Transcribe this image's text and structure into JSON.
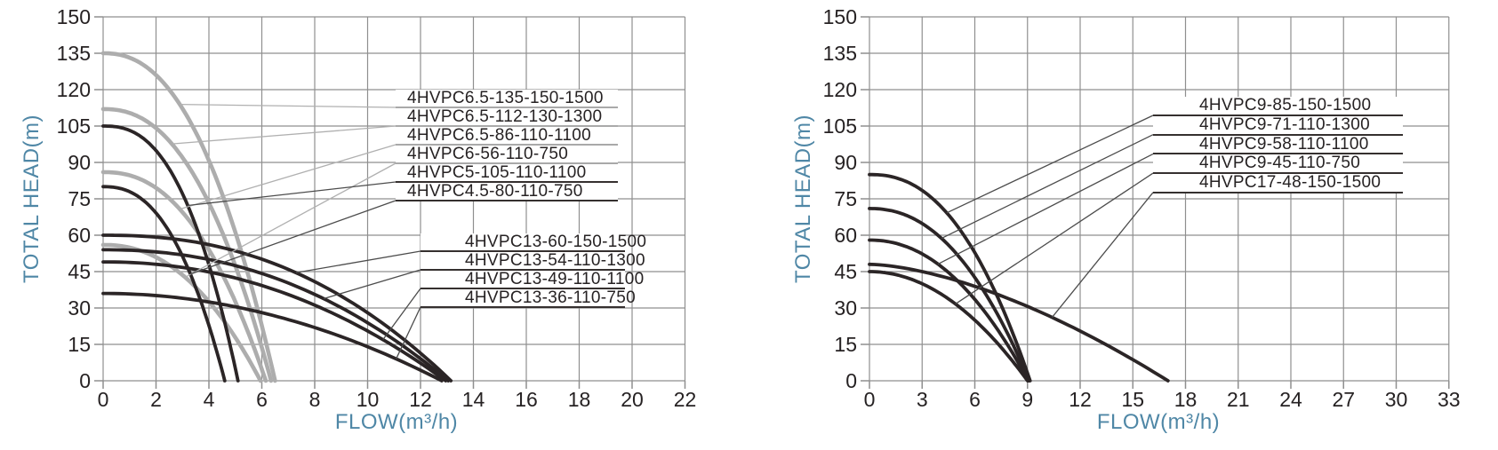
{
  "page": {
    "background": "#ffffff"
  },
  "colors": {
    "grid": "#8f8f8f",
    "tick_text": "#262223",
    "axis_title": "#4f87a6",
    "curve_gray": "#adadad",
    "curve_dark": "#2b2526",
    "leader_gray": "#b0b0b0",
    "leader_dark": "#4c4c4c",
    "underline_gray": "#a9a9a9",
    "underline_dark": "#35302f",
    "label_text": "#262223",
    "label_bg": "#ffffff"
  },
  "chart_data": [
    {
      "type": "line",
      "title": "",
      "xlabel": "FLOW(m³/h)",
      "ylabel": "TOTAL HEAD(m)",
      "xlim": [
        0,
        22
      ],
      "ylim": [
        0,
        150
      ],
      "grid": "on",
      "legend": "inline-leader-labels",
      "x_ticks": [
        0,
        2,
        4,
        6,
        8,
        10,
        12,
        14,
        16,
        18,
        20,
        22
      ],
      "y_ticks": [
        0,
        15,
        30,
        45,
        60,
        75,
        90,
        105,
        120,
        135,
        150
      ],
      "series": [
        {
          "label": "4HVPC6.5-135-150-1500",
          "color": "gray",
          "shutoff_head_m": 135,
          "max_flow_m3h": 6.5,
          "curve_exp": 2.3
        },
        {
          "label": "4HVPC6.5-112-130-1300",
          "color": "gray",
          "shutoff_head_m": 112,
          "max_flow_m3h": 6.35,
          "curve_exp": 2.3
        },
        {
          "label": "4HVPC6.5-86-110-1100",
          "color": "gray",
          "shutoff_head_m": 86,
          "max_flow_m3h": 6.15,
          "curve_exp": 2.3
        },
        {
          "label": "4HVPC6-56-110-750",
          "color": "gray",
          "shutoff_head_m": 56,
          "max_flow_m3h": 5.95,
          "curve_exp": 2.2
        },
        {
          "label": "4HVPC5-105-110-1100",
          "color": "dark",
          "shutoff_head_m": 105,
          "max_flow_m3h": 5.1,
          "curve_exp": 2.5
        },
        {
          "label": "4HVPC4.5-80-110-750",
          "color": "dark",
          "shutoff_head_m": 80,
          "max_flow_m3h": 4.6,
          "curve_exp": 2.4
        },
        {
          "label": "4HVPC13-60-150-1500",
          "color": "dark",
          "shutoff_head_m": 60,
          "max_flow_m3h": 13.15,
          "curve_exp": 2.3
        },
        {
          "label": "4HVPC13-54-110-1300",
          "color": "dark",
          "shutoff_head_m": 54,
          "max_flow_m3h": 13.05,
          "curve_exp": 2.2
        },
        {
          "label": "4HVPC13-49-110-1100",
          "color": "dark",
          "shutoff_head_m": 49,
          "max_flow_m3h": 12.95,
          "curve_exp": 2.1
        },
        {
          "label": "4HVPC13-36-110-750",
          "color": "dark",
          "shutoff_head_m": 36,
          "max_flow_m3h": 12.8,
          "curve_exp": 2.0
        }
      ]
    },
    {
      "type": "line",
      "title": "",
      "xlabel": "FLOW(m³/h)",
      "ylabel": "TOTAL HEAD(m)",
      "xlim": [
        0,
        33
      ],
      "ylim": [
        0,
        150
      ],
      "grid": "on",
      "legend": "inline-leader-labels",
      "x_ticks": [
        0,
        3,
        6,
        9,
        12,
        15,
        18,
        21,
        24,
        27,
        30,
        33
      ],
      "y_ticks": [
        0,
        15,
        30,
        45,
        60,
        75,
        90,
        105,
        120,
        135,
        150
      ],
      "series": [
        {
          "label": "4HVPC9-85-150-1500",
          "color": "dark",
          "shutoff_head_m": 85,
          "max_flow_m3h": 9.15,
          "curve_exp": 2.3
        },
        {
          "label": "4HVPC9-71-110-1300",
          "color": "dark",
          "shutoff_head_m": 71,
          "max_flow_m3h": 9.1,
          "curve_exp": 2.2
        },
        {
          "label": "4HVPC9-58-110-1100",
          "color": "dark",
          "shutoff_head_m": 58,
          "max_flow_m3h": 9.05,
          "curve_exp": 2.1
        },
        {
          "label": "4HVPC9-45-110-750",
          "color": "dark",
          "shutoff_head_m": 45,
          "max_flow_m3h": 9.0,
          "curve_exp": 2.0
        },
        {
          "label": "4HVPC17-48-150-1500",
          "color": "dark",
          "shutoff_head_m": 48,
          "max_flow_m3h": 17.0,
          "curve_exp": 1.6
        }
      ]
    }
  ]
}
